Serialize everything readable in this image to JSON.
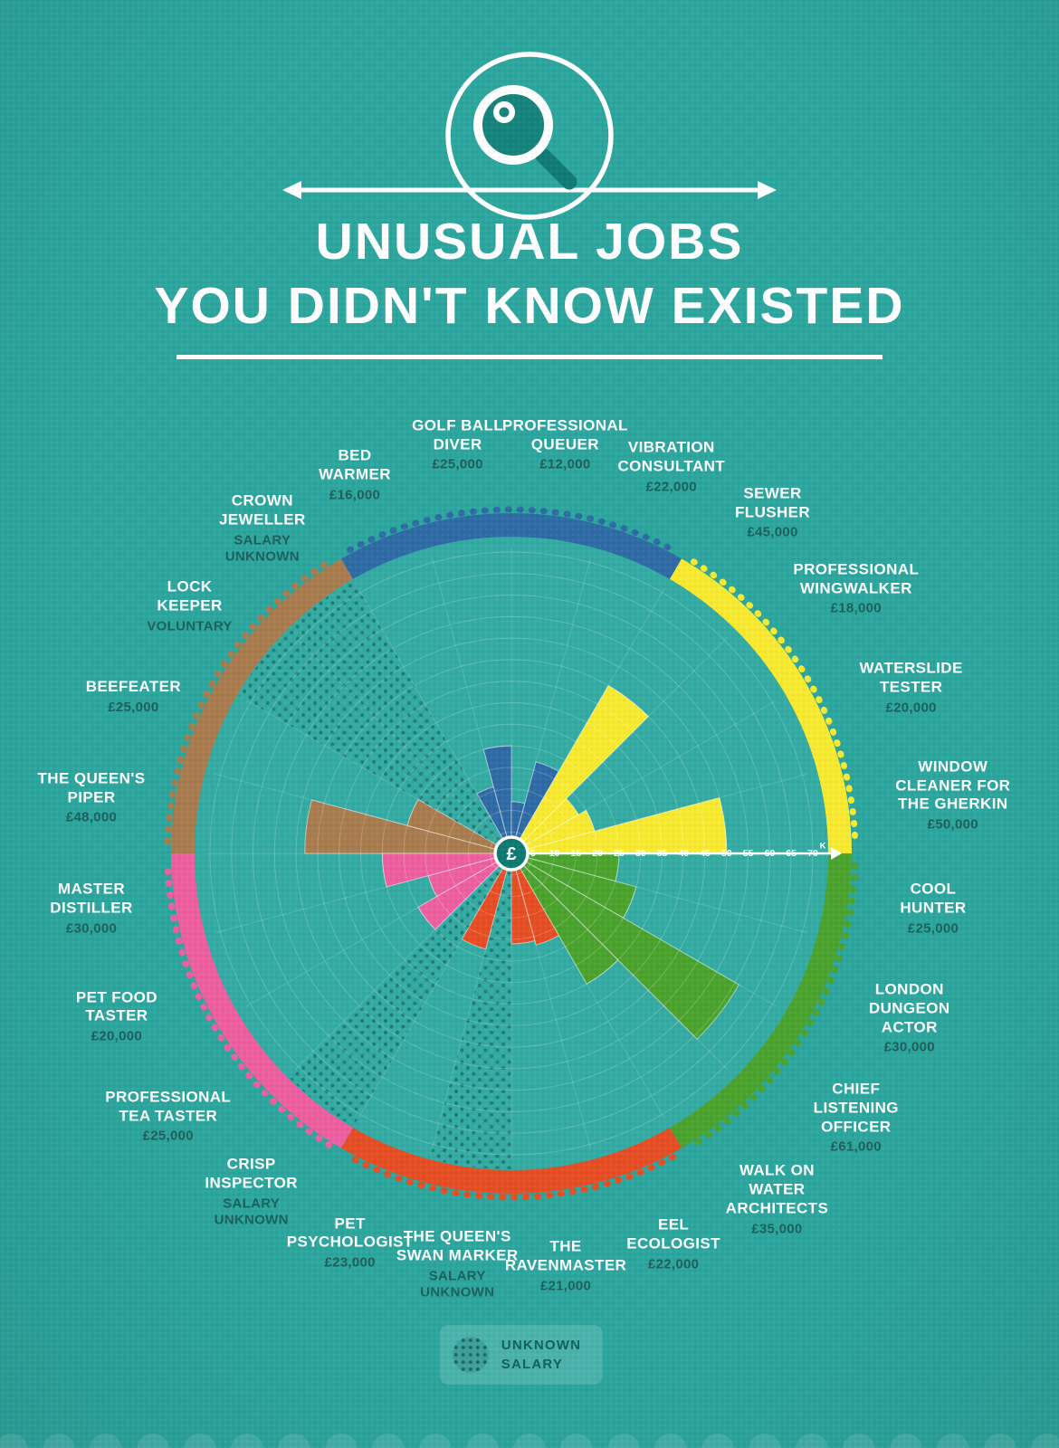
{
  "header": {
    "title_line1": "UNUSUAL JOBS",
    "title_line2": "YOU DIDN'T KNOW EXISTED"
  },
  "legend": {
    "line1": "UNKNOWN",
    "line2": "SALARY"
  },
  "chart_data": {
    "type": "polar-bar",
    "currency_symbol": "£",
    "unit_suffix": "K",
    "axis_ticks": [
      5,
      10,
      15,
      20,
      25,
      30,
      35,
      40,
      45,
      50,
      55,
      60,
      65,
      70
    ],
    "axis_max_k": 70,
    "start_angle_deg": 270,
    "sector_angle_deg": 15,
    "unknown_pattern": "dots",
    "groups": [
      {
        "id": "brown",
        "color": "#a87c4e",
        "jobs": [
          {
            "name": "THE QUEEN'S\nPIPER",
            "salary_label": "£48,000",
            "value_k": 48,
            "unknown": false,
            "lr": 468
          },
          {
            "name": "BEEFEATER",
            "salary_label": "£25,000",
            "value_k": 25,
            "unknown": false,
            "lr": 452
          },
          {
            "name": "LOCK\nKEEPER",
            "salary_label": "VOLUNTARY",
            "value_k": null,
            "unknown": true,
            "lr": 448
          },
          {
            "name": "CROWN\nJEWELLER",
            "salary_label": "SALARY\nUNKNOWN",
            "value_k": null,
            "unknown": true,
            "lr": 452
          }
        ]
      },
      {
        "id": "blue",
        "color": "#2f6ba5",
        "jobs": [
          {
            "name": "BED\nWARMER",
            "salary_label": "£16,000",
            "value_k": 16,
            "unknown": false,
            "lr": 452
          },
          {
            "name": "GOLF BALL\nDIVER",
            "salary_label": "£25,000",
            "value_k": 25,
            "unknown": false,
            "lr": 455
          },
          {
            "name": "PROFESSIONAL\nQUEUER",
            "salary_label": "£12,000",
            "value_k": 12,
            "unknown": false,
            "lr": 455
          },
          {
            "name": "VIBRATION\nCONSULTANT",
            "salary_label": "£22,000",
            "value_k": 22,
            "unknown": false,
            "lr": 462
          }
        ]
      },
      {
        "id": "yellow",
        "color": "#f8ea30",
        "jobs": [
          {
            "name": "SEWER\nFLUSHER",
            "salary_label": "£45,000",
            "value_k": 45,
            "unknown": false,
            "lr": 474
          },
          {
            "name": "PROFESSIONAL\nWINGWALKER",
            "salary_label": "£18,000",
            "value_k": 18,
            "unknown": false,
            "lr": 480
          },
          {
            "name": "WATERSLIDE\nTESTER",
            "salary_label": "£20,000",
            "value_k": 20,
            "unknown": false,
            "lr": 478
          },
          {
            "name": "WINDOW\nCLEANER FOR\nTHE GHERKIN",
            "salary_label": "£50,000",
            "value_k": 50,
            "unknown": false,
            "lr": 492
          }
        ]
      },
      {
        "id": "green",
        "color": "#4ba32e",
        "jobs": [
          {
            "name": "COOL\nHUNTER",
            "salary_label": "£25,000",
            "value_k": 25,
            "unknown": false,
            "lr": 470
          },
          {
            "name": "LONDON\nDUNGEON\nACTOR",
            "salary_label": "£30,000",
            "value_k": 30,
            "unknown": false,
            "lr": 476
          },
          {
            "name": "CHIEF\nLISTENING\nOFFICER",
            "salary_label": "£61,000",
            "value_k": 61,
            "unknown": false,
            "lr": 480
          },
          {
            "name": "WALK ON\nWATER\nARCHITECTS",
            "salary_label": "£35,000",
            "value_k": 35,
            "unknown": false,
            "lr": 482
          }
        ]
      },
      {
        "id": "red",
        "color": "#e64e24",
        "jobs": [
          {
            "name": "EEL\nECOLOGIST",
            "salary_label": "£22,000",
            "value_k": 22,
            "unknown": false,
            "lr": 468
          },
          {
            "name": "THE\nRAVENMASTER",
            "salary_label": "£21,000",
            "value_k": 21,
            "unknown": false,
            "lr": 460
          },
          {
            "name": "THE QUEEN'S\nSWAN MARKER",
            "salary_label": "SALARY\nUNKNOWN",
            "value_k": null,
            "unknown": true,
            "lr": 458
          },
          {
            "name": "PET\nPSYCHOLOGIST",
            "salary_label": "£23,000",
            "value_k": 23,
            "unknown": false,
            "lr": 466
          }
        ]
      },
      {
        "id": "pink",
        "color": "#ee5fa0",
        "jobs": [
          {
            "name": "CRISP\nINSPECTOR",
            "salary_label": "SALARY\nUNKNOWN",
            "value_k": null,
            "unknown": true,
            "lr": 472
          },
          {
            "name": "PROFESSIONAL\nTEA TASTER",
            "salary_label": "£25,000",
            "value_k": 25,
            "unknown": false,
            "lr": 478
          },
          {
            "name": "PET FOOD\nTASTER",
            "salary_label": "£20,000",
            "value_k": 20,
            "unknown": false,
            "lr": 472
          },
          {
            "name": "MASTER\nDISTILLER",
            "salary_label": "£30,000",
            "value_k": 30,
            "unknown": false,
            "lr": 468
          }
        ]
      }
    ]
  }
}
